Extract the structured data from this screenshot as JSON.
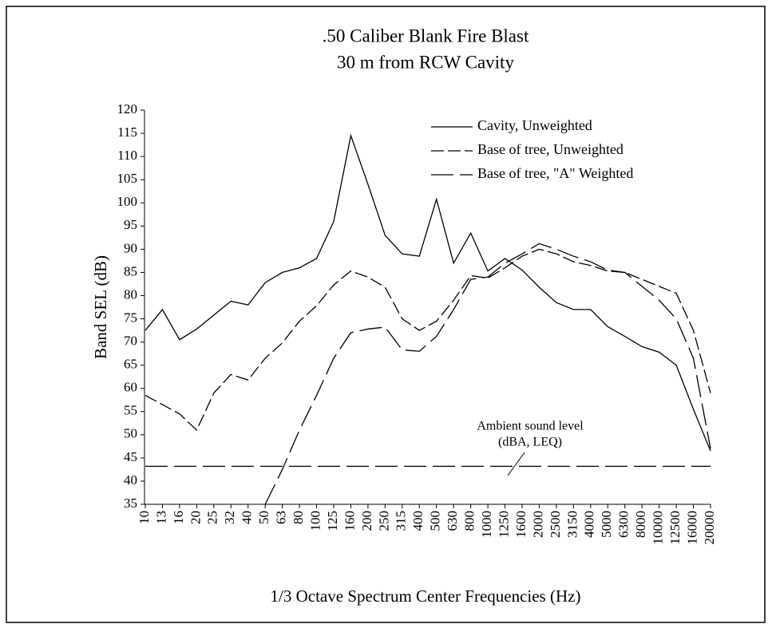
{
  "chart_data": {
    "type": "line",
    "title": [
      ".50 Caliber Blank Fire Blast",
      "30 m from RCW Cavity"
    ],
    "y_label": "Band SEL (dB)",
    "x_label": "1/3 Octave Spectrum Center Frequencies (Hz)",
    "categories": [
      "10",
      "13",
      "16",
      "20",
      "25",
      "32",
      "40",
      "50",
      "63",
      "80",
      "100",
      "125",
      "160",
      "200",
      "250",
      "315",
      "400",
      "500",
      "630",
      "800",
      "1000",
      "1250",
      "1600",
      "2000",
      "2500",
      "3150",
      "4000",
      "5000",
      "6300",
      "8000",
      "10000",
      "12500",
      "16000",
      "20000"
    ],
    "series": [
      {
        "name": "Cavity, Unweighted",
        "color": "#000000",
        "values": [
          72.5,
          77,
          70.5,
          72.8,
          75.8,
          78.8,
          78,
          82.8,
          85,
          86,
          88,
          96,
          114.5,
          104,
          93,
          89,
          88.5,
          100.8,
          87,
          93.5,
          85.3,
          88,
          85.5,
          81.8,
          78.5,
          77,
          77,
          73.3,
          71.2,
          69,
          67.8,
          65,
          55.5,
          46.5
        ]
      },
      {
        "name": "Base of tree, Unweighted",
        "color": "#000000",
        "values": [
          58.5,
          56.5,
          54.5,
          51,
          59,
          63,
          61.8,
          66.5,
          69.8,
          74.5,
          77.8,
          82.3,
          85.3,
          84,
          81.8,
          75,
          72.5,
          74.5,
          79,
          84.3,
          83.8,
          86,
          88.5,
          90,
          89,
          87.3,
          86.5,
          85.3,
          85,
          83.5,
          82,
          80.5,
          72.5,
          59
        ]
      },
      {
        "name": "Base of tree, \"A\" Weighted",
        "color": "#000000",
        "values": [
          null,
          null,
          null,
          null,
          null,
          null,
          null,
          35,
          42.5,
          51,
          58.5,
          66.5,
          72,
          72.8,
          73.2,
          68.3,
          68,
          71.2,
          77,
          83.5,
          84,
          87,
          89,
          91.2,
          90,
          88.5,
          87.3,
          85.5,
          85,
          82,
          79,
          75,
          66.5,
          47
        ]
      }
    ],
    "reference_line": {
      "value": 43.2,
      "label": [
        "Ambient sound level",
        "(dBA, LEQ)"
      ]
    },
    "ylim": [
      35,
      120
    ],
    "yticks": [
      35,
      40,
      45,
      50,
      55,
      60,
      65,
      70,
      75,
      80,
      85,
      90,
      95,
      100,
      105,
      110,
      115,
      120
    ],
    "grid": false,
    "legend": "top-right"
  }
}
